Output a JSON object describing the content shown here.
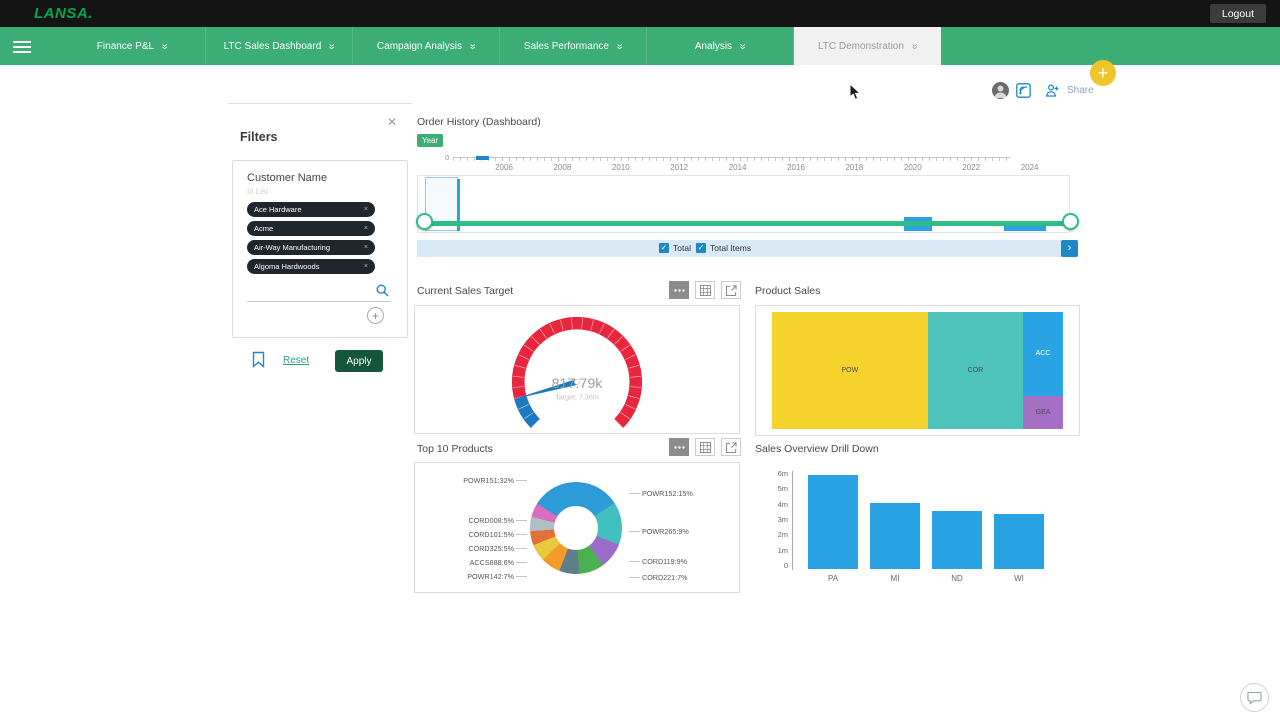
{
  "topbar": {
    "logo_text": "LANSA.",
    "logout_label": "Logout"
  },
  "nav": {
    "tabs": [
      {
        "label": "Finance P&L",
        "active": false
      },
      {
        "label": "LTC Sales Dashboard",
        "active": false
      },
      {
        "label": "Campaign Analysis",
        "active": false
      },
      {
        "label": "Sales Performance",
        "active": false
      },
      {
        "label": "Analysis",
        "active": false
      },
      {
        "label": "LTC Demonstration",
        "active": true
      }
    ],
    "add_label": "+",
    "colors": {
      "bar": "#3CAD74",
      "active_tab_bg": "#F1F1F1",
      "plus_bg": "#F0C52C"
    }
  },
  "header": {
    "share_label": "Share"
  },
  "filters": {
    "panel_title": "Filters",
    "close_glyph": "✕",
    "group_title": "Customer Name",
    "group_condition": "In List",
    "chips": [
      {
        "label": "Ace Hardware"
      },
      {
        "label": "Acme"
      },
      {
        "label": "Air-Way Manufacturing"
      },
      {
        "label": "Algoma Hardwoods"
      }
    ],
    "search_value": "",
    "add_label": "+",
    "reset_label": "Reset",
    "apply_label": "Apply"
  },
  "dashboard": {
    "title": "Order History (Dashboard)",
    "dimension_chip": "Year",
    "timeline": {
      "origin_label": "0",
      "year_labels": [
        "2006",
        "2008",
        "2010",
        "2012",
        "2014",
        "2016",
        "2018",
        "2020",
        "2022",
        "2024"
      ],
      "checkboxes": [
        {
          "label": "Total",
          "checked": true,
          "glyph": "✓"
        },
        {
          "label": "Total Items",
          "checked": true,
          "glyph": "✓"
        }
      ],
      "next_button": "›",
      "track_color": "#2EBD85"
    },
    "panels": [
      {
        "title": "Current Sales Target"
      },
      {
        "title": "Product Sales"
      },
      {
        "title": "Top 10 Products"
      },
      {
        "title": "Sales Overview Drill Down"
      }
    ]
  },
  "chart_data": [
    {
      "name": "current_sales_target",
      "type": "gauge",
      "value_label": "817.79k",
      "target_label": "Target: 7.36m",
      "value": 817790,
      "target": 7360000,
      "percent": 0.11,
      "band_color": "#E8273F",
      "progress_color": "#1B7AC2"
    },
    {
      "name": "product_sales",
      "type": "treemap",
      "items": [
        {
          "label": "POW",
          "color": "#F5D32C",
          "share": 0.54
        },
        {
          "label": "COR",
          "color": "#4DC3BC",
          "share": 0.33
        },
        {
          "label": "ACC",
          "color": "#29A3E3",
          "share": 0.09
        },
        {
          "label": "GEA",
          "color": "#A56FC5",
          "share": 0.04
        }
      ]
    },
    {
      "name": "top_10_products",
      "type": "donut",
      "slices": [
        {
          "label": "POWR151",
          "pct": 32,
          "text": "POWR151:32%",
          "color": "#2D9BD8",
          "side": "left"
        },
        {
          "label": "POWR152",
          "pct": 15,
          "text": "POWR152:15%",
          "color": "#41C0C0",
          "side": "right"
        },
        {
          "label": "POWR265",
          "pct": 9,
          "text": "POWR265:9%",
          "color": "#9A6DC8",
          "side": "right"
        },
        {
          "label": "CORD119",
          "pct": 9,
          "text": "CORD119:9%",
          "color": "#4CAF50",
          "side": "right"
        },
        {
          "label": "CORD221",
          "pct": 7,
          "text": "CORD221:7%",
          "color": "#607D8B",
          "side": "right"
        },
        {
          "label": "POWR142",
          "pct": 7,
          "text": "POWR142:7%",
          "color": "#F39C2C",
          "side": "left"
        },
        {
          "label": "ACCS888",
          "pct": 6,
          "text": "ACCS888:6%",
          "color": "#E9C93F",
          "side": "left"
        },
        {
          "label": "CORD325",
          "pct": 5,
          "text": "CORD325:5%",
          "color": "#E2703A",
          "side": "left"
        },
        {
          "label": "CORD101",
          "pct": 5,
          "text": "CORD101:5%",
          "color": "#B0BEC5",
          "side": "left"
        },
        {
          "label": "CORD008",
          "pct": 5,
          "text": "CORD008:5%",
          "color": "#D86EC2",
          "side": "left"
        }
      ]
    },
    {
      "name": "sales_overview_drill_down",
      "type": "bar",
      "categories": [
        "PA",
        "MI",
        "ND",
        "WI"
      ],
      "values_m": [
        6.1,
        4.3,
        3.8,
        3.6
      ],
      "y_ticks": [
        "6m",
        "5m",
        "4m",
        "3m",
        "2m",
        "1m",
        "0"
      ],
      "ylim_m": [
        0,
        6
      ],
      "bar_color": "#29A3E3"
    }
  ]
}
